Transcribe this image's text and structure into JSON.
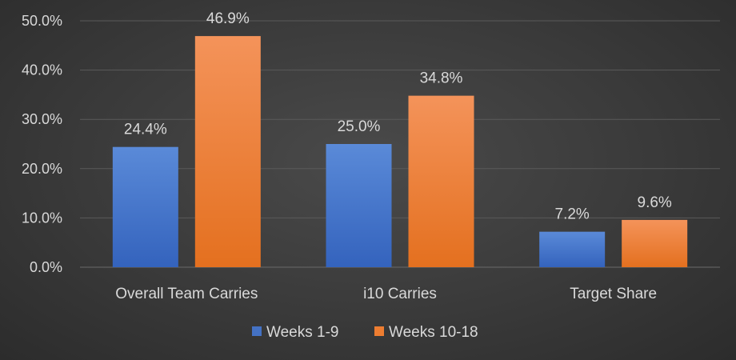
{
  "chart_data": {
    "type": "bar",
    "title": "",
    "xlabel": "",
    "ylabel": "",
    "categories": [
      "Overall Team Carries",
      "i10 Carries",
      "Target Share"
    ],
    "series": [
      {
        "name": "Weeks 1-9",
        "values": [
          24.4,
          25.0,
          7.2
        ],
        "labels": [
          "24.4%",
          "25.0%",
          "7.2%"
        ],
        "color": "#4472c4"
      },
      {
        "name": "Weeks 10-18",
        "values": [
          46.9,
          34.8,
          9.6
        ],
        "labels": [
          "46.9%",
          "34.8%",
          "9.6%"
        ],
        "color": "#ed7d31"
      }
    ],
    "ylim": [
      0,
      50
    ],
    "yticks": [
      "0.0%",
      "10.0%",
      "20.0%",
      "30.0%",
      "40.0%",
      "50.0%"
    ],
    "grid": true,
    "legend_position": "bottom"
  }
}
